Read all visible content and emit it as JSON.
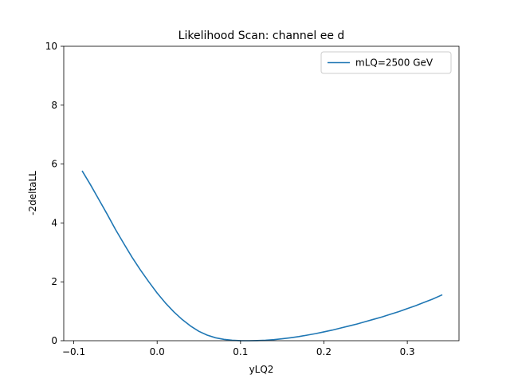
{
  "chart_data": {
    "type": "line",
    "title": "Likelihood Scan: channel ee d",
    "xlabel": "yLQ2",
    "ylabel": "-2deltaLL",
    "xlim": [
      -0.112,
      0.362
    ],
    "ylim": [
      0,
      10
    ],
    "xticks": [
      -0.1,
      0.0,
      0.1,
      0.2,
      0.3
    ],
    "xtick_labels": [
      "−0.1",
      "0.0",
      "0.1",
      "0.2",
      "0.3"
    ],
    "yticks": [
      0,
      2,
      4,
      6,
      8,
      10
    ],
    "ytick_labels": [
      "0",
      "2",
      "4",
      "6",
      "8",
      "10"
    ],
    "grid": false,
    "legend_position": "top-right",
    "series": [
      {
        "name": "mLQ=2500 GeV",
        "color": "#1f77b4",
        "x": [
          -0.09,
          -0.08,
          -0.07,
          -0.06,
          -0.05,
          -0.04,
          -0.03,
          -0.02,
          -0.01,
          0.0,
          0.01,
          0.02,
          0.03,
          0.04,
          0.05,
          0.06,
          0.07,
          0.08,
          0.09,
          0.1,
          0.11,
          0.12,
          0.13,
          0.14,
          0.15,
          0.16,
          0.17,
          0.18,
          0.19,
          0.2,
          0.21,
          0.22,
          0.23,
          0.24,
          0.25,
          0.26,
          0.27,
          0.28,
          0.29,
          0.3,
          0.31,
          0.32,
          0.33,
          0.342
        ],
        "y": [
          5.77,
          5.3,
          4.8,
          4.3,
          3.78,
          3.3,
          2.83,
          2.4,
          2.0,
          1.62,
          1.28,
          0.98,
          0.72,
          0.5,
          0.32,
          0.19,
          0.1,
          0.045,
          0.015,
          0.003,
          0.0,
          0.005,
          0.015,
          0.035,
          0.065,
          0.1,
          0.14,
          0.19,
          0.24,
          0.3,
          0.36,
          0.43,
          0.5,
          0.57,
          0.65,
          0.73,
          0.81,
          0.9,
          0.99,
          1.09,
          1.19,
          1.3,
          1.41,
          1.56
        ]
      }
    ]
  }
}
